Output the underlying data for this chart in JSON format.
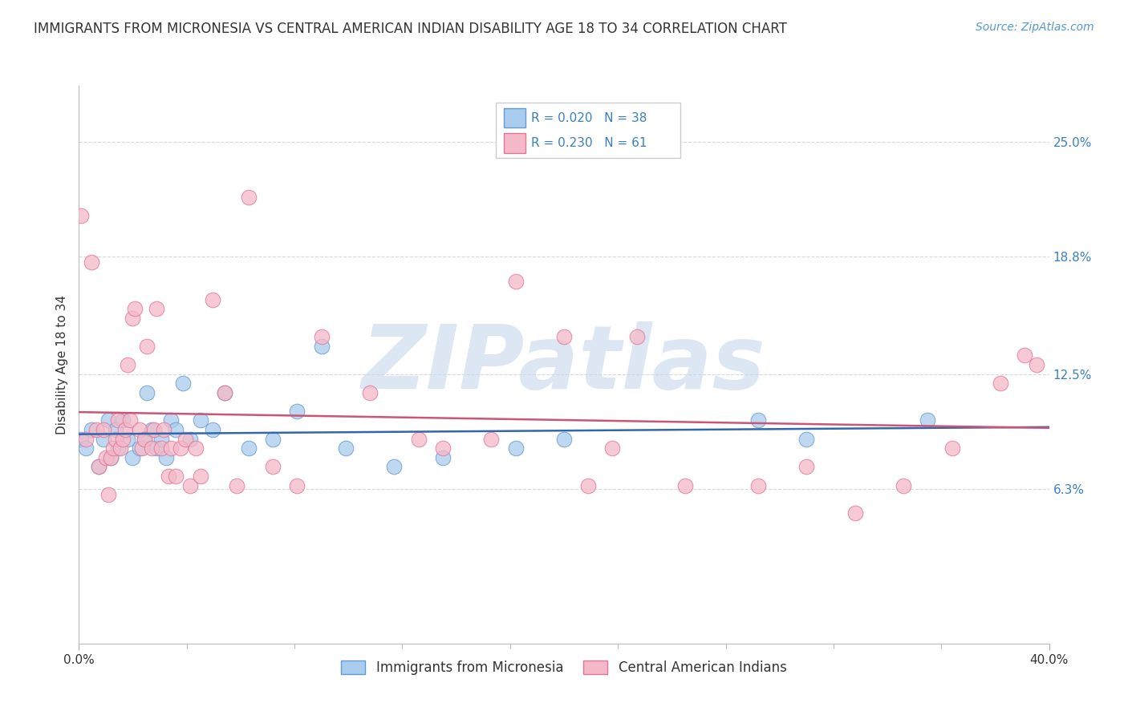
{
  "title": "IMMIGRANTS FROM MICRONESIA VS CENTRAL AMERICAN INDIAN DISABILITY AGE 18 TO 34 CORRELATION CHART",
  "source": "Source: ZipAtlas.com",
  "ylabel": "Disability Age 18 to 34",
  "xlim": [
    0.0,
    0.4
  ],
  "ylim": [
    -0.02,
    0.28
  ],
  "xticks": [
    0.0,
    0.4
  ],
  "xticklabels": [
    "0.0%",
    "40.0%"
  ],
  "ytick_positions": [
    0.063,
    0.125,
    0.188,
    0.25
  ],
  "ytick_labels": [
    "6.3%",
    "12.5%",
    "18.8%",
    "25.0%"
  ],
  "grid_color": "#d8d8d8",
  "background_color": "#ffffff",
  "watermark": "ZIPatlas",
  "series": [
    {
      "label": "Immigrants from Micronesia",
      "R": 0.02,
      "N": 38,
      "color": "#aaccee",
      "edge_color": "#6699cc",
      "trend_color": "#3366aa",
      "x": [
        0.001,
        0.003,
        0.005,
        0.008,
        0.01,
        0.012,
        0.013,
        0.015,
        0.016,
        0.018,
        0.02,
        0.022,
        0.025,
        0.027,
        0.028,
        0.03,
        0.032,
        0.034,
        0.036,
        0.038,
        0.04,
        0.043,
        0.046,
        0.05,
        0.055,
        0.06,
        0.07,
        0.08,
        0.09,
        0.1,
        0.11,
        0.13,
        0.15,
        0.18,
        0.2,
        0.28,
        0.3,
        0.35
      ],
      "y": [
        0.09,
        0.085,
        0.095,
        0.075,
        0.09,
        0.1,
        0.08,
        0.095,
        0.085,
        0.1,
        0.09,
        0.08,
        0.085,
        0.09,
        0.115,
        0.095,
        0.085,
        0.09,
        0.08,
        0.1,
        0.095,
        0.12,
        0.09,
        0.1,
        0.095,
        0.115,
        0.085,
        0.09,
        0.105,
        0.14,
        0.085,
        0.075,
        0.08,
        0.085,
        0.09,
        0.1,
        0.09,
        0.1
      ]
    },
    {
      "label": "Central American Indians",
      "R": 0.23,
      "N": 61,
      "color": "#f5b8c8",
      "edge_color": "#dd7799",
      "trend_color": "#cc5577",
      "x": [
        0.001,
        0.003,
        0.005,
        0.007,
        0.008,
        0.01,
        0.011,
        0.012,
        0.013,
        0.014,
        0.015,
        0.016,
        0.017,
        0.018,
        0.019,
        0.02,
        0.021,
        0.022,
        0.023,
        0.025,
        0.026,
        0.027,
        0.028,
        0.03,
        0.031,
        0.032,
        0.034,
        0.035,
        0.037,
        0.038,
        0.04,
        0.042,
        0.044,
        0.046,
        0.048,
        0.05,
        0.055,
        0.06,
        0.065,
        0.07,
        0.08,
        0.09,
        0.1,
        0.12,
        0.14,
        0.15,
        0.17,
        0.18,
        0.2,
        0.21,
        0.22,
        0.23,
        0.25,
        0.28,
        0.3,
        0.32,
        0.34,
        0.36,
        0.38,
        0.39,
        0.395
      ],
      "y": [
        0.21,
        0.09,
        0.185,
        0.095,
        0.075,
        0.095,
        0.08,
        0.06,
        0.08,
        0.085,
        0.09,
        0.1,
        0.085,
        0.09,
        0.095,
        0.13,
        0.1,
        0.155,
        0.16,
        0.095,
        0.085,
        0.09,
        0.14,
        0.085,
        0.095,
        0.16,
        0.085,
        0.095,
        0.07,
        0.085,
        0.07,
        0.085,
        0.09,
        0.065,
        0.085,
        0.07,
        0.165,
        0.115,
        0.065,
        0.22,
        0.075,
        0.065,
        0.145,
        0.115,
        0.09,
        0.085,
        0.09,
        0.175,
        0.145,
        0.065,
        0.085,
        0.145,
        0.065,
        0.065,
        0.075,
        0.05,
        0.065,
        0.085,
        0.12,
        0.135,
        0.13
      ]
    }
  ],
  "title_fontsize": 12,
  "axis_label_fontsize": 11,
  "tick_fontsize": 11,
  "legend_fontsize": 12,
  "source_fontsize": 10,
  "watermark_color": "#c5d8ec",
  "watermark_fontsize": 80
}
